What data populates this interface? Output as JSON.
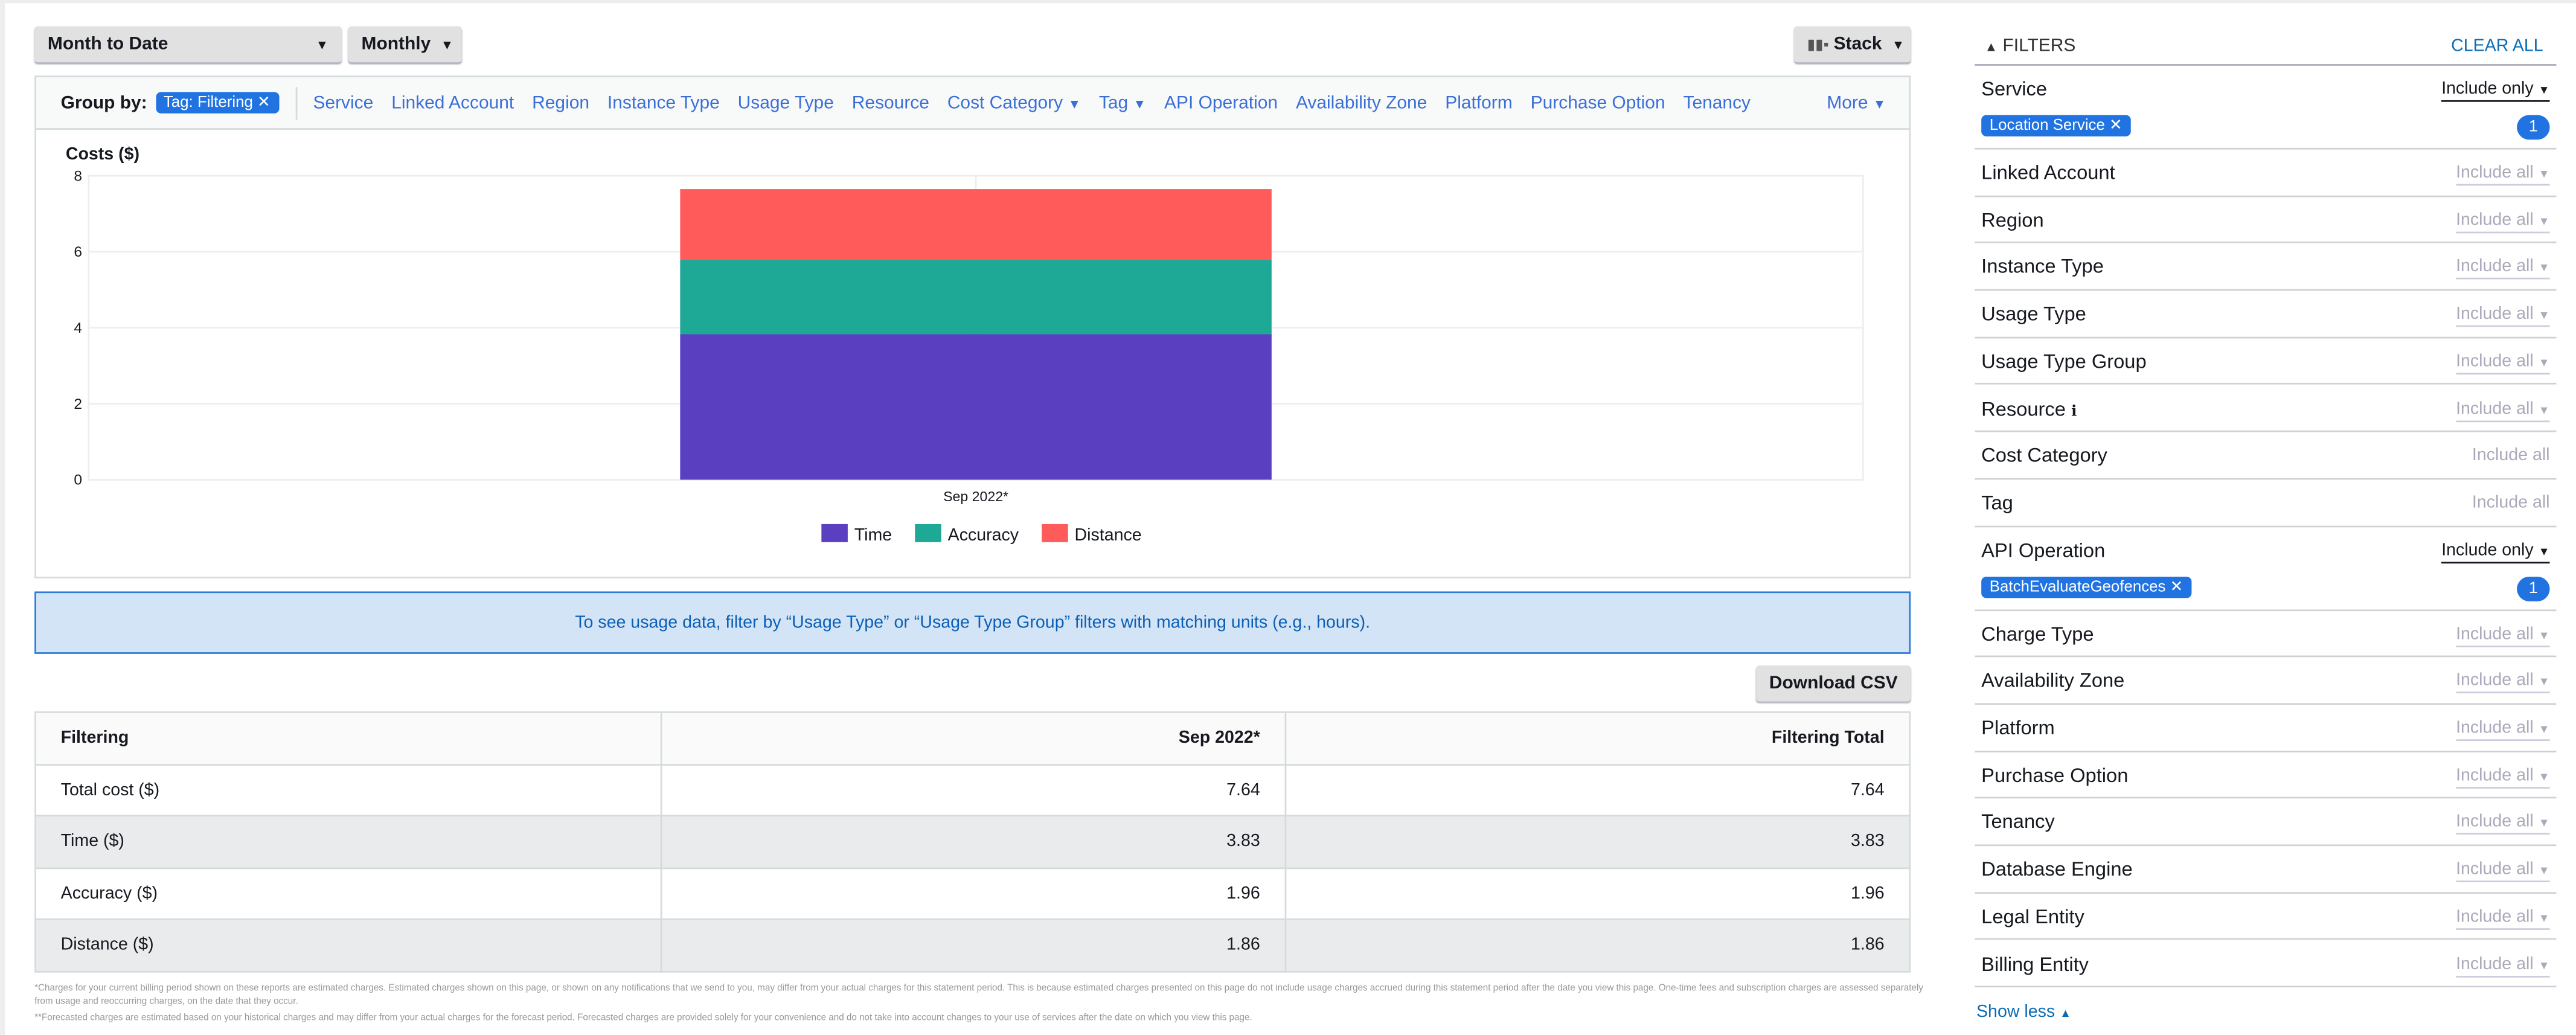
{
  "toolbar": {
    "date_range": "Month to Date",
    "granularity": "Monthly",
    "chart_style": "Stack"
  },
  "group_by": {
    "label": "Group by:",
    "selected": "Tag: Filtering",
    "options": [
      {
        "label": "Service"
      },
      {
        "label": "Linked Account"
      },
      {
        "label": "Region"
      },
      {
        "label": "Instance Type"
      },
      {
        "label": "Usage Type"
      },
      {
        "label": "Resource"
      },
      {
        "label": "Cost Category",
        "dropdown": true
      },
      {
        "label": "Tag",
        "dropdown": true
      },
      {
        "label": "API Operation"
      },
      {
        "label": "Availability Zone"
      },
      {
        "label": "Platform"
      },
      {
        "label": "Purchase Option"
      },
      {
        "label": "Tenancy"
      }
    ],
    "more": "More"
  },
  "chart_data": {
    "type": "bar",
    "stacked": true,
    "ylabel": "Costs ($)",
    "categories": [
      "Sep 2022*"
    ],
    "ylim": [
      0,
      8
    ],
    "yticks": [
      0,
      2,
      4,
      6,
      8
    ],
    "grid": true,
    "legend_placement": "bottom",
    "series": [
      {
        "name": "Time",
        "values": [
          3.83
        ],
        "color": "#5a3fc0"
      },
      {
        "name": "Accuracy",
        "values": [
          1.96
        ],
        "color": "#1ea896"
      },
      {
        "name": "Distance",
        "values": [
          1.86
        ],
        "color": "#ff5b5b"
      }
    ]
  },
  "info_message": "To see usage data, filter by “Usage Type” or “Usage Type Group” filters with matching units (e.g., hours).",
  "download_csv": "Download CSV",
  "table": {
    "headers": [
      "Filtering",
      "Sep 2022*",
      "Filtering Total"
    ],
    "rows": [
      [
        "Total cost ($)",
        "7.64",
        "7.64"
      ],
      [
        "Time ($)",
        "3.83",
        "3.83"
      ],
      [
        "Accuracy ($)",
        "1.96",
        "1.96"
      ],
      [
        "Distance ($)",
        "1.86",
        "1.86"
      ]
    ]
  },
  "footnotes": [
    "*Charges for your current billing period shown on these reports are estimated charges. Estimated charges shown on this page, or shown on any notifications that we send to you, may differ from your actual charges for this statement period. This is because estimated charges presented on this page do not include usage charges accrued during this statement period after the date you view this page. One-time fees and subscription charges are assessed separately from usage and reoccurring charges, on the date that they occur.",
    "**Forecasted charges are estimated based on your historical charges and may differ from your actual charges for the forecast period. Forecasted charges are provided solely for your convenience and do not take into account changes to your use of services after the date on which you view this page."
  ],
  "filters": {
    "title": "FILTERS",
    "clear_all": "CLEAR ALL",
    "show_less": "Show less",
    "items": [
      {
        "name": "Service",
        "mode": "Include only",
        "active": true,
        "chip": "Location Service",
        "count": "1"
      },
      {
        "name": "Linked Account",
        "mode": "Include all"
      },
      {
        "name": "Region",
        "mode": "Include all"
      },
      {
        "name": "Instance Type",
        "mode": "Include all"
      },
      {
        "name": "Usage Type",
        "mode": "Include all"
      },
      {
        "name": "Usage Type Group",
        "mode": "Include all"
      },
      {
        "name": "Resource",
        "mode": "Include all",
        "info": true
      },
      {
        "name": "Cost Category",
        "mode": "Include all",
        "disabled": true
      },
      {
        "name": "Tag",
        "mode": "Include all",
        "disabled": true
      },
      {
        "name": "API Operation",
        "mode": "Include only",
        "active": true,
        "chip": "BatchEvaluateGeofences",
        "count": "1"
      },
      {
        "name": "Charge Type",
        "mode": "Include all"
      },
      {
        "name": "Availability Zone",
        "mode": "Include all"
      },
      {
        "name": "Platform",
        "mode": "Include all"
      },
      {
        "name": "Purchase Option",
        "mode": "Include all"
      },
      {
        "name": "Tenancy",
        "mode": "Include all"
      },
      {
        "name": "Database Engine",
        "mode": "Include all"
      },
      {
        "name": "Legal Entity",
        "mode": "Include all"
      },
      {
        "name": "Billing Entity",
        "mode": "Include all"
      }
    ]
  }
}
